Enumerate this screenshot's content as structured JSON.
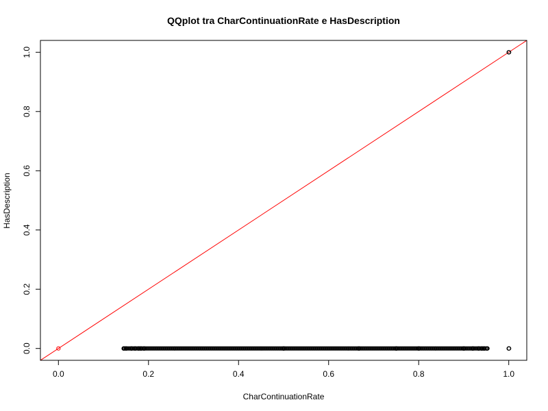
{
  "chart_data": {
    "type": "scatter",
    "title": "QQplot tra CharContinuationRate e HasDescription",
    "xlabel": "CharContinuationRate",
    "ylabel": "HasDescription",
    "xlim": [
      -0.04,
      1.04
    ],
    "ylim": [
      -0.04,
      1.04
    ],
    "x_ticks": [
      0.0,
      0.2,
      0.4,
      0.6,
      0.8,
      1.0
    ],
    "y_ticks": [
      0.0,
      0.2,
      0.4,
      0.6,
      0.8,
      1.0
    ],
    "x_tick_labels": [
      "0.0",
      "0.2",
      "0.4",
      "0.6",
      "0.8",
      "1.0"
    ],
    "y_tick_labels": [
      "0.0",
      "0.2",
      "0.4",
      "0.6",
      "0.8",
      "1.0"
    ],
    "grid": false,
    "point_color": "#000000",
    "reference_line": {
      "slope": 1,
      "intercept": 0,
      "color": "#ff0000"
    },
    "special_points": [
      {
        "x": 0.0,
        "y": 0.0,
        "color": "#ff0000"
      }
    ],
    "dense_band": {
      "y": 0.0,
      "x_start": 0.145,
      "x_end": 0.952
    },
    "points": [
      {
        "x": 1.0,
        "y": 1.0
      },
      {
        "x": 1.0,
        "y": 0.0
      },
      {
        "x": 0.145,
        "y": 0.0
      },
      {
        "x": 0.15,
        "y": 0.0
      },
      {
        "x": 0.162,
        "y": 0.0
      },
      {
        "x": 0.17,
        "y": 0.0
      },
      {
        "x": 0.178,
        "y": 0.0
      },
      {
        "x": 0.183,
        "y": 0.0
      },
      {
        "x": 0.19,
        "y": 0.0
      },
      {
        "x": 0.5,
        "y": 0.0
      },
      {
        "x": 0.667,
        "y": 0.0
      },
      {
        "x": 0.75,
        "y": 0.0
      },
      {
        "x": 0.8,
        "y": 0.0
      },
      {
        "x": 0.9,
        "y": 0.0
      },
      {
        "x": 0.92,
        "y": 0.0
      },
      {
        "x": 0.933,
        "y": 0.0
      },
      {
        "x": 0.94,
        "y": 0.0
      },
      {
        "x": 0.945,
        "y": 0.0
      },
      {
        "x": 0.952,
        "y": 0.0
      }
    ]
  }
}
